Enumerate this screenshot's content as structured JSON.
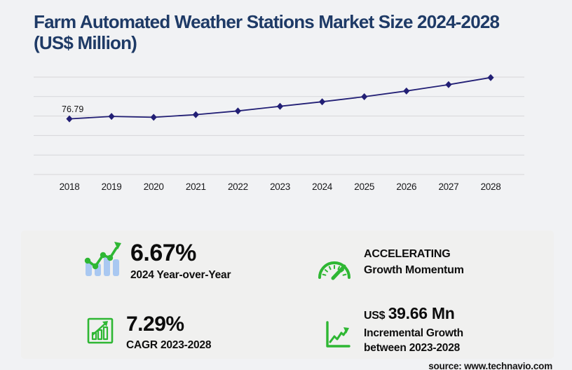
{
  "title": {
    "line1": "Farm Automated Weather Stations Market Size 2024-2028",
    "line2": "(US$ Million)"
  },
  "chart_data": {
    "type": "line",
    "title": "Farm Automated Weather Stations Market Size 2024-2028 (US$ Million)",
    "x": [
      "2018",
      "2019",
      "2020",
      "2021",
      "2022",
      "2023",
      "2024",
      "2025",
      "2026",
      "2027",
      "2028"
    ],
    "series": [
      {
        "name": "Market size (US$ million)",
        "values": [
          76.79,
          80.22,
          78.94,
          82.59,
          87.75,
          94.13,
          100.41,
          107.44,
          115.31,
          124.06,
          133.79
        ]
      }
    ],
    "data_labels": [
      {
        "index": 0,
        "text": "76.79"
      }
    ],
    "ylim": [
      0,
      134.5
    ],
    "gridline_count": 6,
    "grid": "horizontal",
    "legend": "none",
    "marker": "diamond",
    "line_color": "#221f75",
    "grid_color": "#d6d6d9",
    "tick_color": "#19191b",
    "label_color": "#151515"
  },
  "stats": {
    "yoy": {
      "icon": "bars-trend-up-icon",
      "value": "6.67%",
      "label": "2024 Year-over-Year"
    },
    "momentum": {
      "icon": "speedometer-icon",
      "line1": "ACCELERATING",
      "line2": "Growth Momentum"
    },
    "cagr": {
      "icon": "framed-growth-chart-icon",
      "value": "7.29%",
      "label": "CAGR 2023-2028"
    },
    "incremental": {
      "icon": "axes-trend-up-icon",
      "currency": "US$",
      "value": "39.66 Mn",
      "line1": "Incremental Growth",
      "line2": "between 2023-2028"
    }
  },
  "source": "source: www.technavio.com",
  "colors": {
    "page_bg": "#f1f2f4",
    "panel_bg": "#f0f0ef",
    "title_navy": "#1e3a66",
    "chart_navy": "#221f75",
    "accent_green": "#2eb733",
    "bar_blue": "#a9c8f1"
  }
}
